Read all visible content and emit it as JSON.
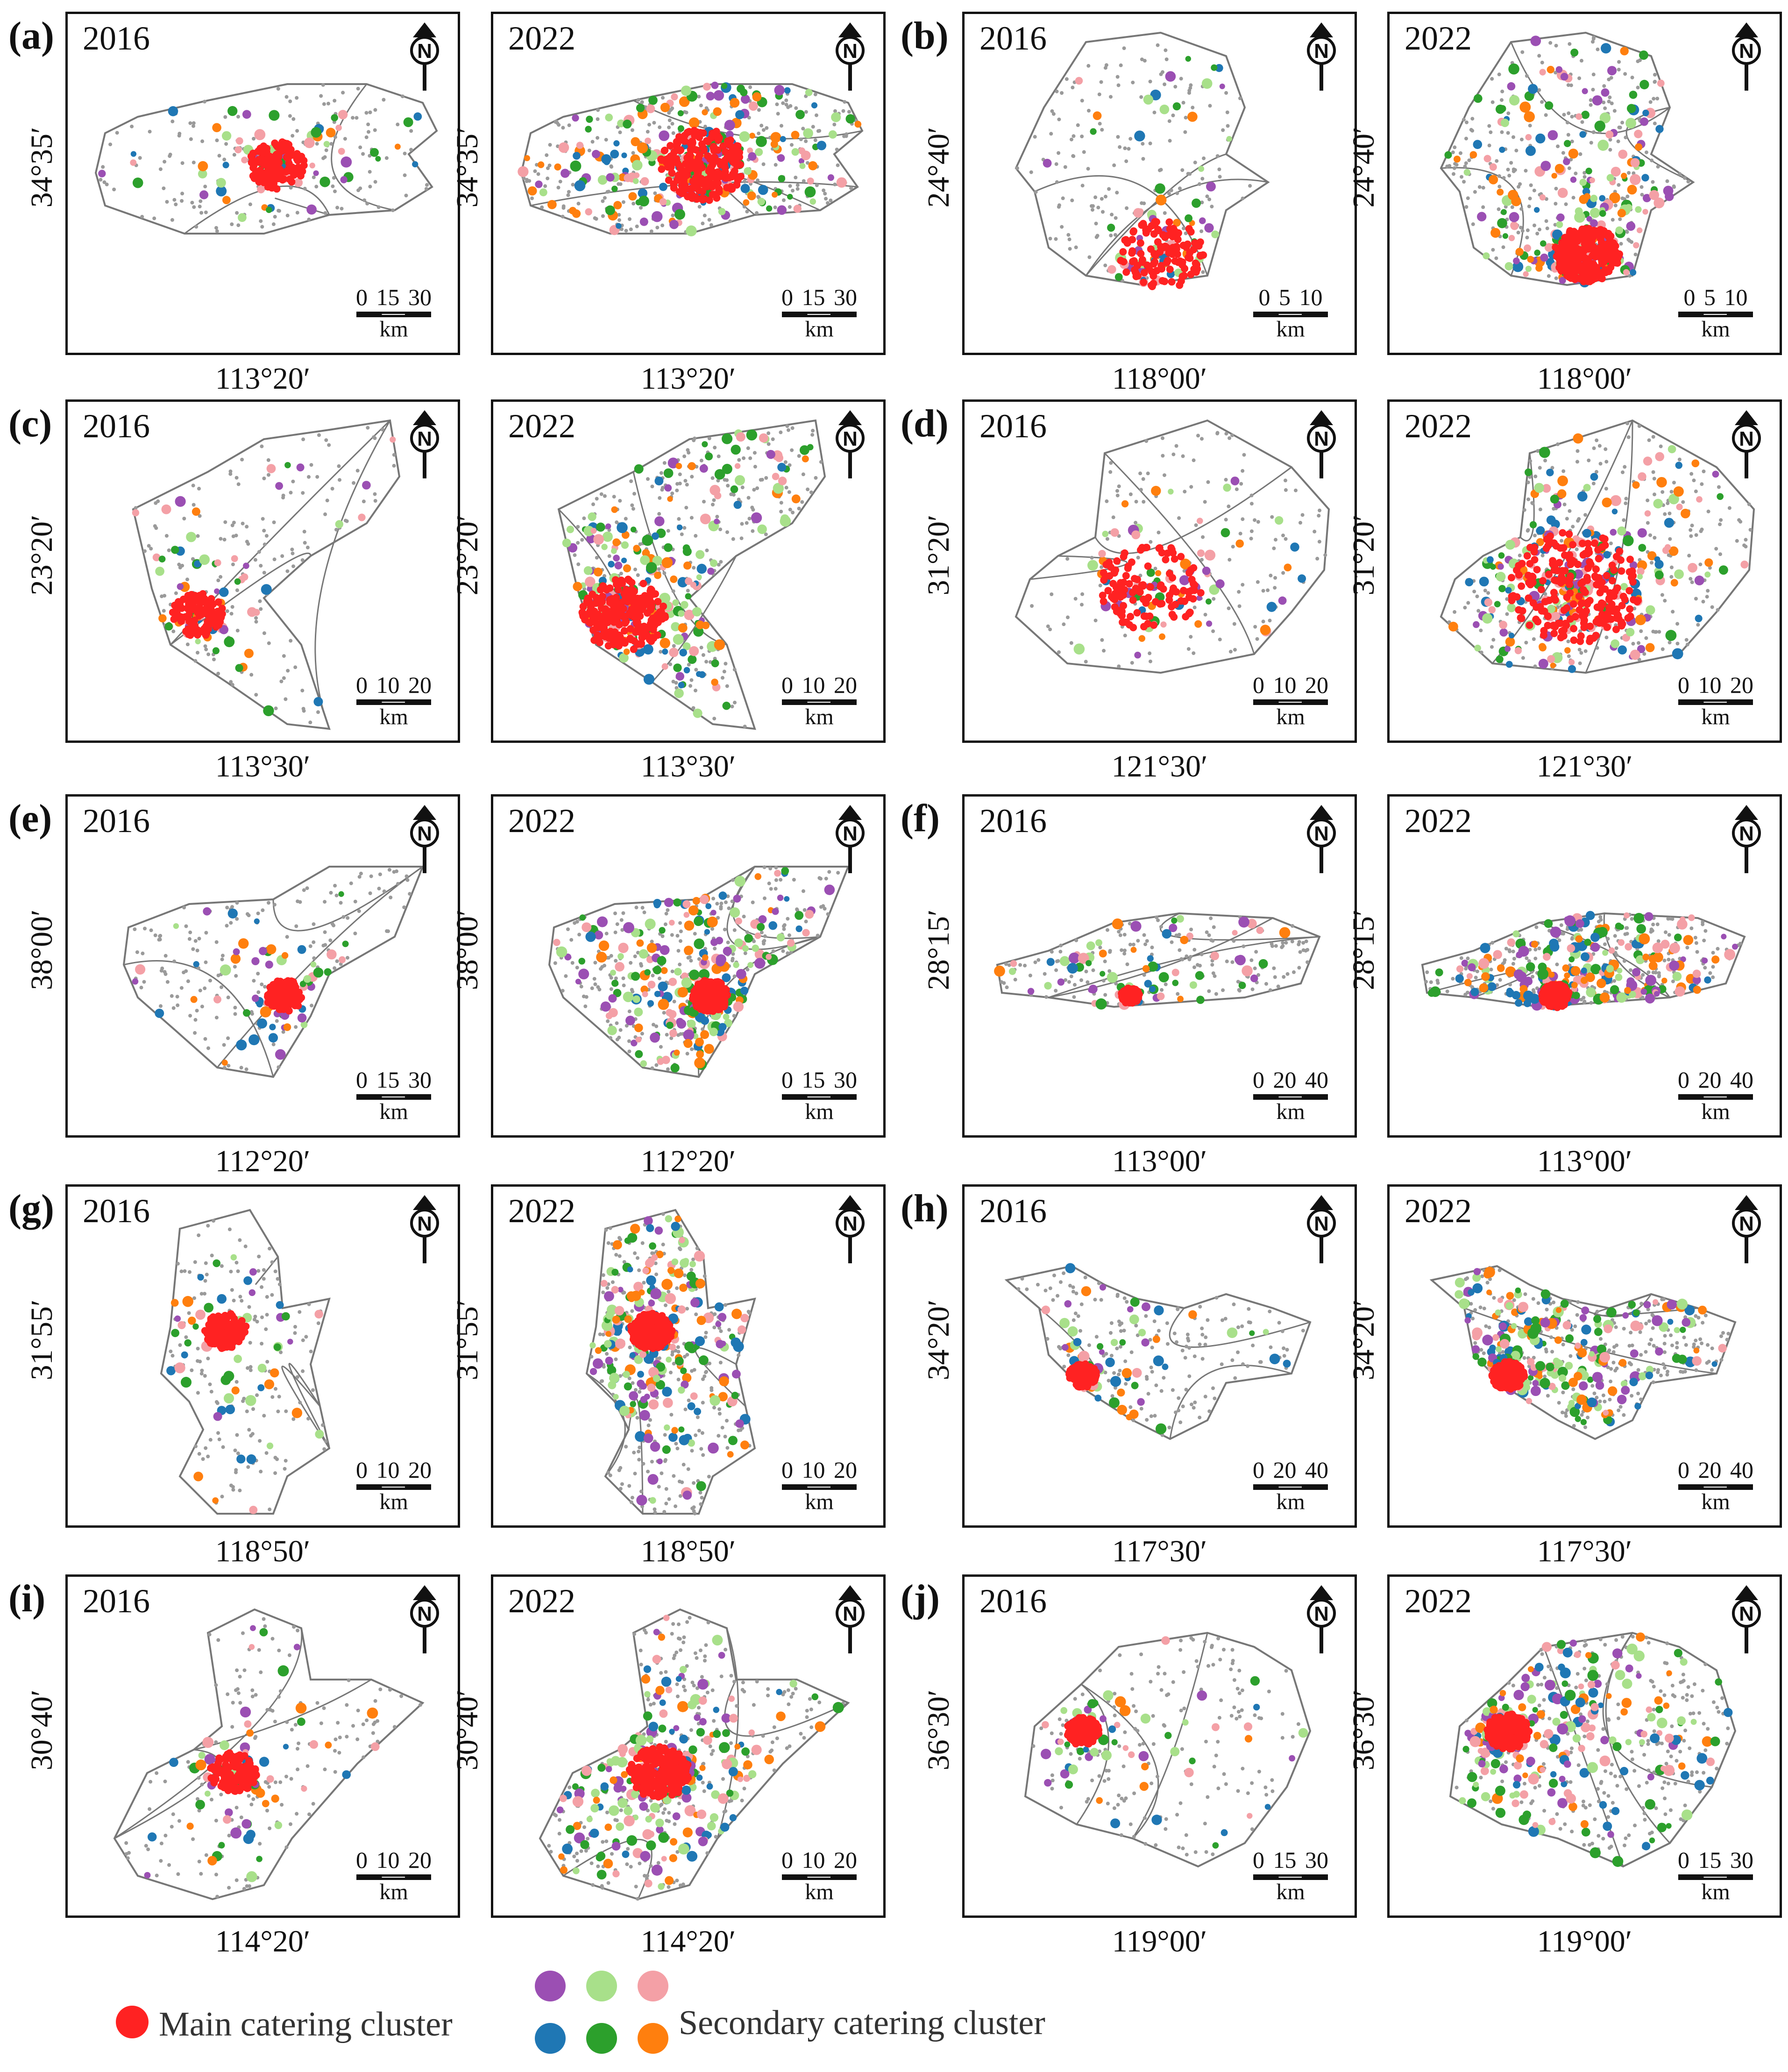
{
  "figure": {
    "years": {
      "left": "2016",
      "right": "2022"
    },
    "north_label": "N",
    "scale_unit": "km",
    "colors": {
      "boundary": "#777777",
      "poi_grey": "#9a9a9a",
      "main": "#ff2222",
      "purple": "#9b4fb3",
      "light_green": "#a8e08a",
      "pink": "#f4a0a6",
      "blue": "#1f77b4",
      "green": "#2ca02c",
      "orange": "#ff7f0e"
    },
    "panels": [
      {
        "letter": "(a)",
        "lat": "34°35′",
        "lon": "113°20′",
        "scale": "0 15 30"
      },
      {
        "letter": "(b)",
        "lat": "24°40′",
        "lon": "118°00′",
        "scale": "0 5 10"
      },
      {
        "letter": "(c)",
        "lat": "23°20′",
        "lon": "113°30′",
        "scale": "0 10 20"
      },
      {
        "letter": "(d)",
        "lat": "31°20′",
        "lon": "121°30′",
        "scale": "0 10 20"
      },
      {
        "letter": "(e)",
        "lat": "38°00′",
        "lon": "112°20′",
        "scale": "0 15 30"
      },
      {
        "letter": "(f)",
        "lat": "28°15′",
        "lon": "113°00′",
        "scale": "0 20 40"
      },
      {
        "letter": "(g)",
        "lat": "31°55′",
        "lon": "118°50′",
        "scale": "0 10 20"
      },
      {
        "letter": "(h)",
        "lat": "34°20′",
        "lon": "117°30′",
        "scale": "0 20 40"
      },
      {
        "letter": "(i)",
        "lat": "30°40′",
        "lon": "114°20′",
        "scale": "0 10 20"
      },
      {
        "letter": "(j)",
        "lat": "36°30′",
        "lon": "119°00′",
        "scale": "0 15 30"
      }
    ],
    "legend": {
      "main_label": "Main catering cluster",
      "secondary_label": "Secondary catering cluster"
    }
  }
}
